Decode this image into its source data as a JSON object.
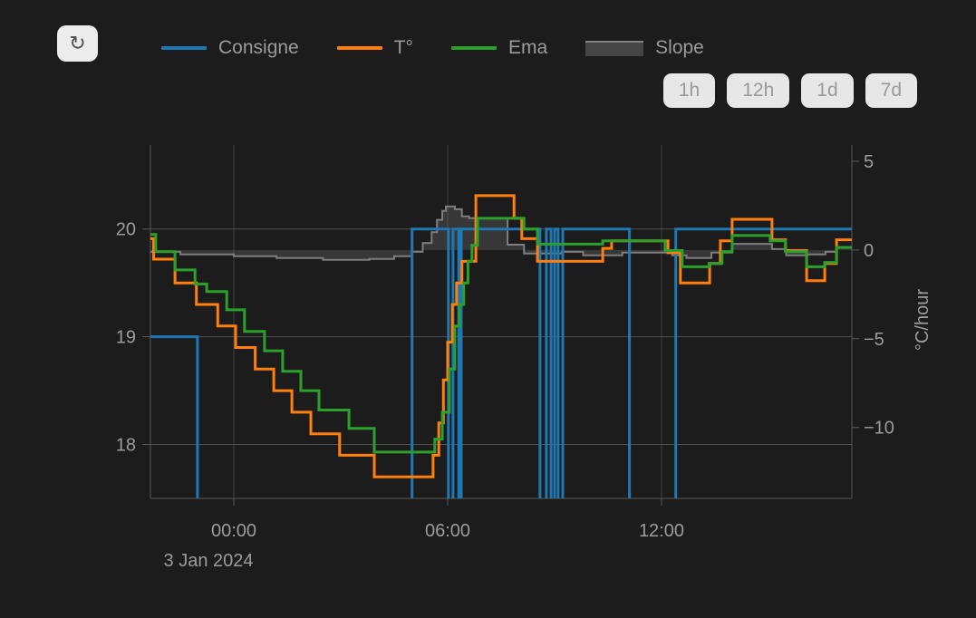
{
  "toolbar": {
    "refresh_icon": "↻"
  },
  "legend": [
    {
      "label": "Consigne",
      "color": "#1f77b4",
      "type": "line"
    },
    {
      "label": "T°",
      "color": "#ff7f0e",
      "type": "line"
    },
    {
      "label": "Ema",
      "color": "#2ca02c",
      "type": "line"
    },
    {
      "label": "Slope",
      "color": "#7d7d7d",
      "type": "area",
      "fill": "#454545",
      "edge": "#828282"
    }
  ],
  "range_buttons": [
    {
      "label": "1h"
    },
    {
      "label": "12h"
    },
    {
      "label": "1d"
    },
    {
      "label": "7d"
    }
  ],
  "chart_data": {
    "type": "line",
    "x_unit": "hours relative to 3 Jan 2024 00:00",
    "x_range": [
      -2.34,
      17.34
    ],
    "x_ticks": [
      {
        "hour": 0,
        "label": "00:00"
      },
      {
        "hour": 6,
        "label": "06:00"
      },
      {
        "hour": 12,
        "label": "12:00"
      }
    ],
    "x_date_label": "3 Jan 2024",
    "y_left": {
      "unit": "°C",
      "range": [
        17.5,
        20.78
      ],
      "ticks": [
        {
          "v": 20,
          "label": "20"
        },
        {
          "v": 19,
          "label": "19"
        },
        {
          "v": 18,
          "label": "18"
        }
      ]
    },
    "y_right": {
      "title": "°C/hour",
      "range": [
        -14.0,
        5.92
      ],
      "ticks": [
        {
          "v": 5,
          "label": "5"
        },
        {
          "v": 0,
          "label": "0"
        },
        {
          "v": -5,
          "label": "−5"
        },
        {
          "v": -10,
          "label": "−10"
        }
      ]
    },
    "grid": true,
    "legend_position": "top",
    "series": [
      {
        "name": "Slope",
        "axis": "right",
        "render": "step-area",
        "color": "#7d7d7d",
        "width": 2,
        "fill": "rgba(125,125,125,0.28)",
        "points": [
          [
            -2.34,
            -0.1
          ],
          [
            -1.5,
            -0.25
          ],
          [
            0.0,
            -0.35
          ],
          [
            1.2,
            -0.45
          ],
          [
            2.5,
            -0.55
          ],
          [
            3.8,
            -0.5
          ],
          [
            4.5,
            -0.35
          ],
          [
            5.0,
            -0.1
          ],
          [
            5.3,
            0.4
          ],
          [
            5.55,
            1.0
          ],
          [
            5.7,
            1.7
          ],
          [
            5.85,
            2.2
          ],
          [
            5.95,
            2.45
          ],
          [
            6.2,
            2.3
          ],
          [
            6.4,
            1.9
          ],
          [
            6.6,
            1.8
          ],
          [
            7.68,
            0.3
          ],
          [
            8.14,
            -0.2
          ],
          [
            9.2,
            -0.1
          ],
          [
            9.8,
            -0.3
          ],
          [
            10.9,
            -0.15
          ],
          [
            12.3,
            -0.3
          ],
          [
            12.7,
            -0.45
          ],
          [
            13.4,
            -0.15
          ],
          [
            13.98,
            0.35
          ],
          [
            15.1,
            0.05
          ],
          [
            15.5,
            -0.3
          ],
          [
            16.1,
            -0.25
          ],
          [
            16.6,
            -0.1
          ],
          [
            16.91,
            0.15
          ],
          [
            17.34,
            0.1
          ]
        ]
      },
      {
        "name": "Consigne",
        "axis": "left",
        "render": "step",
        "color": "#1f77b4",
        "width": 3,
        "fill": null,
        "points": [
          [
            -2.34,
            19
          ],
          [
            -1.02,
            17.45
          ],
          [
            5.0,
            20
          ],
          [
            6.02,
            17.45
          ],
          [
            6.15,
            20
          ],
          [
            6.31,
            17.45
          ],
          [
            6.38,
            20
          ],
          [
            8.59,
            17.45
          ],
          [
            8.77,
            20
          ],
          [
            8.9,
            17.45
          ],
          [
            9.0,
            20
          ],
          [
            9.1,
            17.45
          ],
          [
            9.23,
            20
          ],
          [
            11.1,
            17.45
          ],
          [
            12.4,
            20
          ],
          [
            17.34,
            20
          ]
        ]
      },
      {
        "name": "T°",
        "axis": "left",
        "render": "step",
        "color": "#ff7f0e",
        "width": 3,
        "fill": null,
        "points": [
          [
            -2.34,
            19.91
          ],
          [
            -2.25,
            19.72
          ],
          [
            -1.65,
            19.5
          ],
          [
            -1.05,
            19.3
          ],
          [
            -0.45,
            19.1
          ],
          [
            0.05,
            18.9
          ],
          [
            0.6,
            18.7
          ],
          [
            1.12,
            18.5
          ],
          [
            1.63,
            18.3
          ],
          [
            2.16,
            18.1
          ],
          [
            2.97,
            17.9
          ],
          [
            3.94,
            17.7
          ],
          [
            5.59,
            17.9
          ],
          [
            5.75,
            18.2
          ],
          [
            5.88,
            18.6
          ],
          [
            6.0,
            18.95
          ],
          [
            6.13,
            19.3
          ],
          [
            6.25,
            19.5
          ],
          [
            6.4,
            19.7
          ],
          [
            6.79,
            20.31
          ],
          [
            7.86,
            20.1
          ],
          [
            8.08,
            19.91
          ],
          [
            8.52,
            19.7
          ],
          [
            10.35,
            19.82
          ],
          [
            10.6,
            19.89
          ],
          [
            12.18,
            19.78
          ],
          [
            12.53,
            19.5
          ],
          [
            13.35,
            19.68
          ],
          [
            13.65,
            19.89
          ],
          [
            13.98,
            20.09
          ],
          [
            15.1,
            19.9
          ],
          [
            15.48,
            19.8
          ],
          [
            16.07,
            19.52
          ],
          [
            16.58,
            19.68
          ],
          [
            16.91,
            19.9
          ],
          [
            17.34,
            19.9
          ]
        ]
      },
      {
        "name": "Ema",
        "axis": "left",
        "render": "step",
        "color": "#2ca02c",
        "width": 3,
        "fill": null,
        "points": [
          [
            -2.34,
            19.95
          ],
          [
            -2.19,
            19.79
          ],
          [
            -1.65,
            19.62
          ],
          [
            -1.09,
            19.49
          ],
          [
            -0.76,
            19.42
          ],
          [
            -0.2,
            19.25
          ],
          [
            0.3,
            19.05
          ],
          [
            0.86,
            18.87
          ],
          [
            1.37,
            18.68
          ],
          [
            1.88,
            18.5
          ],
          [
            2.39,
            18.32
          ],
          [
            3.23,
            18.15
          ],
          [
            3.94,
            17.93
          ],
          [
            5.64,
            18.05
          ],
          [
            5.85,
            18.3
          ],
          [
            6.05,
            18.7
          ],
          [
            6.2,
            19.1
          ],
          [
            6.33,
            19.3
          ],
          [
            6.45,
            19.5
          ],
          [
            6.57,
            19.7
          ],
          [
            6.68,
            19.85
          ],
          [
            6.84,
            20.1
          ],
          [
            8.14,
            20.0
          ],
          [
            8.52,
            19.86
          ],
          [
            10.35,
            19.89
          ],
          [
            12.1,
            19.8
          ],
          [
            12.58,
            19.65
          ],
          [
            13.33,
            19.68
          ],
          [
            13.7,
            19.79
          ],
          [
            13.98,
            19.94
          ],
          [
            15.05,
            19.89
          ],
          [
            15.48,
            19.79
          ],
          [
            16.07,
            19.65
          ],
          [
            16.58,
            19.69
          ],
          [
            16.91,
            19.83
          ],
          [
            17.34,
            19.83
          ]
        ]
      }
    ]
  }
}
